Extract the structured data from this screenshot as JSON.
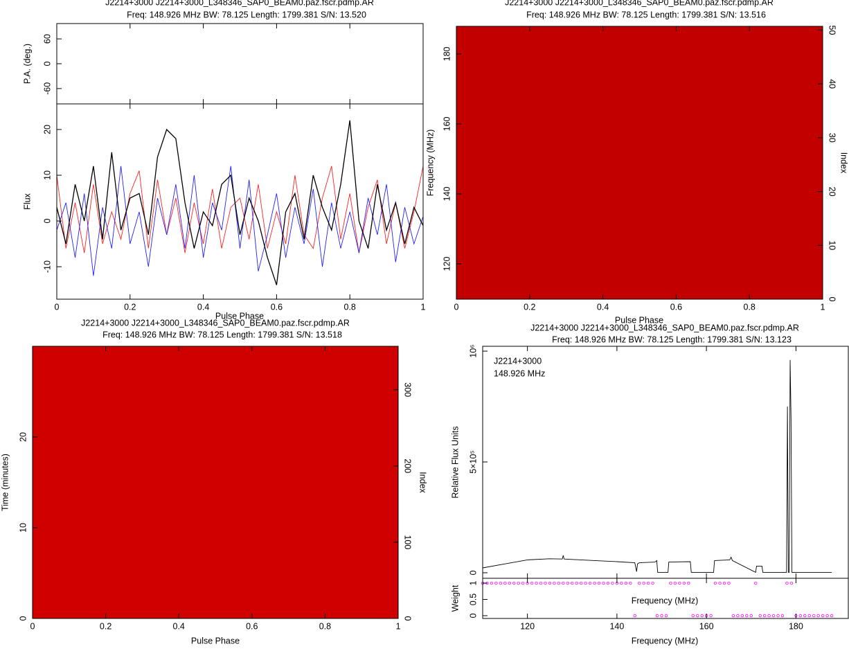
{
  "chart_data": [
    {
      "type": "profile",
      "title": "J2214+3000  J2214+3000_L348346_SAP0_BEAM0.paz.fscr.pdmp.AR",
      "subtitle": "Freq: 148.926 MHz BW: 78.125 Length: 1799.381 S/N: 13.520",
      "pa": {
        "ylabel": "P.A. (deg.)",
        "ylim": [
          -97,
          97
        ],
        "yticks": [
          -60,
          0,
          60
        ]
      },
      "xlabel": "Pulse Phase",
      "ylabel": "Flux",
      "xlim": [
        0,
        1
      ],
      "xticks": [
        0,
        0.2,
        0.4,
        0.6,
        0.8,
        1
      ],
      "ylim": [
        -17.1,
        25.6
      ],
      "yticks": [
        -10,
        0,
        10,
        20
      ],
      "x": [
        0,
        0.025,
        0.05,
        0.075,
        0.1,
        0.125,
        0.15,
        0.175,
        0.2,
        0.225,
        0.25,
        0.275,
        0.3,
        0.325,
        0.35,
        0.375,
        0.4,
        0.425,
        0.45,
        0.475,
        0.5,
        0.525,
        0.55,
        0.575,
        0.6,
        0.625,
        0.65,
        0.675,
        0.7,
        0.725,
        0.75,
        0.775,
        0.8,
        0.825,
        0.85,
        0.875,
        0.9,
        0.925,
        0.95,
        0.975,
        1
      ],
      "series": [
        {
          "color": "#ff2020",
          "values": [
            10,
            -6,
            4,
            -7,
            8,
            -5,
            2,
            -4,
            6,
            11,
            -6,
            9,
            -3,
            5,
            -7,
            4,
            -5,
            7,
            -6,
            3,
            5,
            -4,
            8,
            -6,
            2,
            -5,
            10,
            -3,
            -6,
            5,
            12,
            -4,
            6,
            -7,
            3,
            9,
            -5,
            4,
            -6,
            2,
            12
          ]
        },
        {
          "color": "#2020ff",
          "values": [
            -2,
            4,
            -8,
            6,
            -12,
            3,
            -6,
            12,
            -5,
            2,
            -10,
            5,
            -3,
            8,
            -6,
            10,
            -8,
            4,
            -2,
            12,
            -6,
            9,
            -11,
            -3,
            6,
            -8,
            3,
            -5,
            7,
            -10,
            4,
            -6,
            2,
            -7,
            5,
            -3,
            8,
            -9,
            3,
            -5,
            1
          ]
        },
        {
          "color": "#000000",
          "values": [
            3,
            -5,
            8,
            0,
            12,
            -4,
            15,
            -2,
            5,
            6,
            -3,
            14,
            20,
            18,
            4,
            -6,
            2,
            -1,
            8,
            10,
            -3,
            5,
            0,
            -8,
            -14,
            2,
            6,
            -4,
            10,
            3,
            -2,
            8,
            22,
            0,
            -6,
            8,
            -2,
            4,
            -5,
            3,
            -1
          ]
        }
      ]
    },
    {
      "type": "heatmap",
      "title": "J2214+3000  J2214+3000_L348346_SAP0_BEAM0.paz.fscr.pdmp.AR",
      "subtitle": "Freq: 148.926 MHz BW: 78.125 Length: 1799.381 S/N: 13.516",
      "xlabel": "Pulse Phase",
      "ylabel": "Frequency (MHz)",
      "y2label": "Index",
      "xlim": [
        0,
        1
      ],
      "xticks": [
        0,
        0.2,
        0.4,
        0.6,
        0.8,
        1
      ],
      "ylim": [
        109.9,
        187.9
      ],
      "yticks": [
        120,
        140,
        160,
        180
      ],
      "y2lim": [
        0,
        50.7
      ],
      "y2ticks": [
        0,
        10,
        20,
        30,
        40,
        50
      ],
      "colormap": [
        "#8a0000",
        "#ff7000",
        "#ffb000",
        "#ffe050"
      ]
    },
    {
      "type": "heatmap",
      "title": "J2214+3000  J2214+3000_L348346_SAP0_BEAM0.paz.fscr.pdmp.AR",
      "subtitle": "Freq: 148.926 MHz BW: 78.125 Length: 1799.381 S/N: 13.518",
      "xlabel": "Pulse Phase",
      "ylabel": "Time (minutes)",
      "y2label": "Index",
      "xlim": [
        0,
        1
      ],
      "xticks": [
        0,
        0.2,
        0.4,
        0.6,
        0.8,
        1
      ],
      "ylim": [
        0,
        30
      ],
      "yticks": [
        0,
        10,
        20
      ],
      "y2lim": [
        0,
        357
      ],
      "y2ticks": [
        0,
        100,
        200,
        300
      ],
      "colormap": [
        "#a00000",
        "#ff8000",
        "#ffd000",
        "#ffff70"
      ]
    },
    {
      "type": "bandpass",
      "title": "J2214+3000  J2214+3000_L348346_SAP0_BEAM0.paz.fscr.pdmp.AR",
      "subtitle": "Freq: 148.926 MHz BW: 78.125 Length: 1799.381 S/N: 13.123",
      "legend": [
        "J2214+3000",
        "148.926 MHz"
      ],
      "xlabel": "Frequency (MHz)",
      "ylabel": "Relative Flux Units",
      "xlim": [
        110,
        191.7
      ],
      "xticks": [
        120,
        140,
        160,
        180
      ],
      "ylim": [
        -25000,
        1022000
      ],
      "yticks": [
        0,
        {
          "value": 500000,
          "label": "5×10⁵"
        },
        {
          "value": 1000000,
          "label": "10⁶"
        }
      ],
      "color": "#000000",
      "x": [
        110,
        115,
        120,
        125,
        127.8,
        128,
        128.2,
        130,
        135,
        140,
        144,
        144.4,
        144.6,
        145,
        148.5,
        148.9,
        149.1,
        151.4,
        151.6,
        156.4,
        156.6,
        161.6,
        161.8,
        165.2,
        165.5,
        165.8,
        171,
        171.2,
        172.4,
        172.6,
        177.9,
        178.1,
        178.3,
        178.5,
        178.7,
        178.9,
        179.1,
        179.3,
        188
      ],
      "values": [
        22000,
        40000,
        58000,
        63000,
        62000,
        78000,
        62000,
        60000,
        55000,
        50000,
        45000,
        5000,
        40000,
        45000,
        48000,
        55000,
        2000,
        2000,
        48000,
        50000,
        2000,
        2000,
        55000,
        58000,
        70000,
        55000,
        2000,
        30000,
        30000,
        2000,
        2000,
        750000,
        2000,
        2000,
        960000,
        700000,
        2000,
        2000,
        2000
      ],
      "weight": {
        "ylabel": "Weight",
        "label": "Frequency (MHz)",
        "color": "#ff00ff",
        "ylim": [
          -0.085,
          1.15
        ],
        "yticks": [
          0,
          0.5,
          1
        ],
        "x": [
          110,
          111,
          112,
          113,
          114,
          115,
          116,
          117,
          118,
          119,
          120,
          121,
          122,
          123,
          124,
          125,
          126,
          127,
          128,
          129,
          130,
          131,
          132,
          133,
          134,
          135,
          136,
          137,
          138,
          139,
          140,
          141,
          142,
          143,
          144,
          145,
          146,
          147,
          148,
          149,
          150,
          151,
          152,
          153,
          154,
          155,
          156,
          157,
          158,
          159,
          160,
          161,
          162,
          163,
          164,
          165,
          166,
          167,
          168,
          169,
          170,
          171,
          172,
          173,
          174,
          175,
          176,
          177,
          178,
          179,
          180,
          181,
          182,
          183,
          184,
          185,
          186,
          187,
          188
        ],
        "values": [
          1,
          1,
          1,
          1,
          1,
          1,
          1,
          1,
          1,
          1,
          1,
          1,
          1,
          1,
          1,
          1,
          1,
          1,
          1,
          1,
          1,
          1,
          1,
          1,
          1,
          1,
          1,
          1,
          1,
          1,
          1,
          1,
          1,
          1,
          0,
          1,
          1,
          1,
          1,
          0,
          0,
          0,
          1,
          1,
          1,
          1,
          1,
          0,
          0,
          0,
          0,
          0,
          1,
          1,
          1,
          1,
          0,
          0,
          0,
          0,
          0,
          1,
          0,
          0,
          0,
          0,
          0,
          0,
          1,
          1,
          0,
          0,
          0,
          0,
          0,
          0,
          0,
          0,
          0
        ]
      }
    }
  ]
}
